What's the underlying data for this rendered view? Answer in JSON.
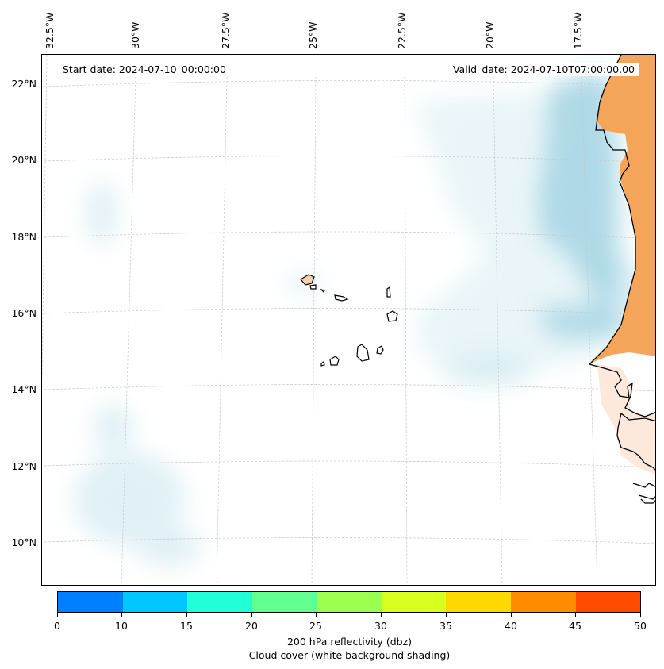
{
  "map": {
    "start_date": "Start date: 2024-07-10_00:00:00",
    "valid_date": "Valid_date: 2024-07-10T07:00:00.00",
    "lon_labels": [
      "32.5°W",
      "30°W",
      "27.5°W",
      "25°W",
      "22.5°W",
      "20°W",
      "17.5°W"
    ],
    "lat_labels": [
      "22°N",
      "20°N",
      "18°N",
      "16°N",
      "14°N",
      "12°N",
      "10°N"
    ],
    "land_fill_color": "#f5a55a",
    "cloud_color": "#a9d6e5",
    "coastline_color": "#000000"
  },
  "colorbar": {
    "ticks": [
      "0",
      "10",
      "15",
      "20",
      "25",
      "30",
      "35",
      "40",
      "45",
      "50"
    ],
    "colors": [
      "#0080ff",
      "#00c8ff",
      "#20ffd8",
      "#60ff90",
      "#9cff50",
      "#d8ff20",
      "#ffd800",
      "#ff8c00",
      "#ff4a00"
    ],
    "label_line1": "200 hPa reflectivity (dbz)",
    "label_line2": "Cloud cover (white background shading)"
  }
}
